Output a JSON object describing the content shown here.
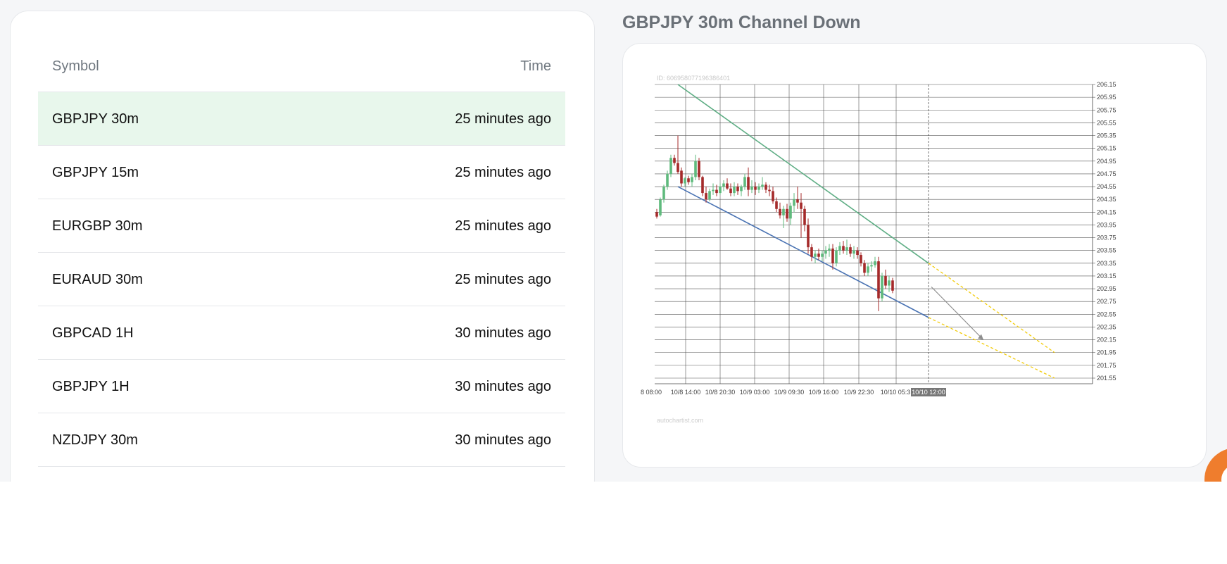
{
  "table": {
    "columns": {
      "symbol": "Symbol",
      "time": "Time"
    },
    "rows": [
      {
        "symbol": "GBPJPY 30m",
        "time": "25 minutes ago",
        "selected": true
      },
      {
        "symbol": "GBPJPY 15m",
        "time": "25 minutes ago"
      },
      {
        "symbol": "EURGBP 30m",
        "time": "25 minutes ago"
      },
      {
        "symbol": "EURAUD 30m",
        "time": "25 minutes ago"
      },
      {
        "symbol": "GBPCAD 1H",
        "time": "30 minutes ago"
      },
      {
        "symbol": "GBPJPY 1H",
        "time": "30 minutes ago"
      },
      {
        "symbol": "NZDJPY 30m",
        "time": "30 minutes ago"
      }
    ]
  },
  "detail": {
    "title": "GBPJPY 30m Channel Down",
    "chart_id": "ID: 6069580771963864​01",
    "watermark": "autochartist.com",
    "selected_time_label": "10/10 12:00"
  },
  "colors": {
    "bull": "#5fba7d",
    "bear": "#a52a2a",
    "resistance": "#5fae85",
    "support": "#4a73b3",
    "projection": "#f2cc0c",
    "forecast_arrow": "#8e8e8e",
    "highlight_row": "#e8f7ec",
    "fab": "#ef7d2d"
  },
  "chart_data": {
    "type": "candlestick",
    "title": "GBPJPY 30m Channel Down",
    "y_ticks": [
      "206.15",
      "205.95",
      "205.75",
      "205.55",
      "205.35",
      "205.15",
      "204.95",
      "204.75",
      "204.55",
      "204.35",
      "204.15",
      "203.95",
      "203.75",
      "203.55",
      "203.35",
      "203.15",
      "202.95",
      "202.75",
      "202.55",
      "202.35",
      "202.15",
      "201.95",
      "201.75",
      "201.55"
    ],
    "x_ticks": [
      "8 08:00",
      "10/8 14:00",
      "10/8 20:30",
      "10/9 03:00",
      "10/9 09:30",
      "10/9 16:00",
      "10/9 22:30",
      "10/10 05:3"
    ],
    "x_selected": "10/10 12:00",
    "ylim": [
      201.55,
      206.15
    ],
    "grid": true,
    "candles": [
      [
        0,
        204.15,
        204.2,
        204.05,
        204.08
      ],
      [
        1,
        204.1,
        204.38,
        204.08,
        204.35
      ],
      [
        2,
        204.35,
        204.58,
        204.3,
        204.55
      ],
      [
        3,
        204.55,
        204.8,
        204.5,
        204.75
      ],
      [
        4,
        204.75,
        205.05,
        204.7,
        205.0
      ],
      [
        5,
        205.0,
        205.05,
        204.88,
        204.92
      ],
      [
        6,
        204.92,
        205.35,
        204.75,
        204.78
      ],
      [
        7,
        204.8,
        204.85,
        204.55,
        204.6
      ],
      [
        8,
        204.6,
        204.7,
        204.55,
        204.68
      ],
      [
        9,
        204.68,
        204.72,
        204.58,
        204.62
      ],
      [
        10,
        204.62,
        204.75,
        204.55,
        204.7
      ],
      [
        11,
        204.7,
        205.05,
        204.65,
        204.95
      ],
      [
        12,
        204.95,
        205.0,
        204.65,
        204.7
      ],
      [
        13,
        204.7,
        204.72,
        204.4,
        204.45
      ],
      [
        14,
        204.45,
        204.55,
        204.3,
        204.35
      ],
      [
        15,
        204.35,
        204.52,
        204.32,
        204.48
      ],
      [
        16,
        204.48,
        204.6,
        204.42,
        204.5
      ],
      [
        17,
        204.5,
        204.58,
        204.4,
        204.45
      ],
      [
        18,
        204.45,
        204.6,
        204.42,
        204.55
      ],
      [
        19,
        204.55,
        204.65,
        204.48,
        204.6
      ],
      [
        20,
        204.6,
        204.68,
        204.5,
        204.52
      ],
      [
        21,
        204.52,
        204.6,
        204.4,
        204.45
      ],
      [
        22,
        204.45,
        204.62,
        204.4,
        204.55
      ],
      [
        23,
        204.55,
        204.6,
        204.42,
        204.48
      ],
      [
        24,
        204.48,
        204.58,
        204.4,
        204.55
      ],
      [
        25,
        204.55,
        204.75,
        204.5,
        204.7
      ],
      [
        26,
        204.7,
        204.85,
        204.4,
        204.5
      ],
      [
        27,
        204.5,
        204.65,
        204.45,
        204.55
      ],
      [
        28,
        204.55,
        204.62,
        204.42,
        204.5
      ],
      [
        29,
        204.5,
        204.6,
        204.45,
        204.55
      ],
      [
        30,
        204.55,
        204.7,
        204.5,
        204.58
      ],
      [
        31,
        204.58,
        204.62,
        204.45,
        204.5
      ],
      [
        32,
        204.5,
        204.58,
        204.4,
        204.48
      ],
      [
        33,
        204.48,
        204.55,
        204.28,
        204.32
      ],
      [
        34,
        204.32,
        204.38,
        204.15,
        204.2
      ],
      [
        35,
        204.2,
        204.3,
        204.05,
        204.1
      ],
      [
        36,
        204.1,
        204.25,
        203.9,
        204.2
      ],
      [
        37,
        204.2,
        204.28,
        204.0,
        204.05
      ],
      [
        38,
        204.05,
        204.3,
        203.95,
        204.25
      ],
      [
        39,
        204.25,
        204.45,
        204.15,
        204.35
      ],
      [
        40,
        204.35,
        204.55,
        204.2,
        204.3
      ],
      [
        41,
        204.3,
        204.45,
        203.75,
        204.2
      ],
      [
        42,
        204.2,
        204.25,
        203.85,
        203.95
      ],
      [
        43,
        203.95,
        204.05,
        203.5,
        203.6
      ],
      [
        44,
        203.6,
        203.65,
        203.38,
        203.45
      ],
      [
        45,
        203.45,
        203.55,
        203.35,
        203.5
      ],
      [
        46,
        203.5,
        203.58,
        203.4,
        203.45
      ],
      [
        47,
        203.45,
        203.55,
        203.38,
        203.5
      ],
      [
        48,
        203.5,
        203.62,
        203.42,
        203.55
      ],
      [
        49,
        203.55,
        203.65,
        203.45,
        203.58
      ],
      [
        50,
        203.58,
        203.65,
        203.25,
        203.35
      ],
      [
        51,
        203.35,
        203.6,
        203.3,
        203.55
      ],
      [
        52,
        203.55,
        203.68,
        203.48,
        203.62
      ],
      [
        53,
        203.62,
        203.7,
        203.5,
        203.55
      ],
      [
        54,
        203.55,
        203.72,
        203.48,
        203.6
      ],
      [
        55,
        203.6,
        203.65,
        203.45,
        203.5
      ],
      [
        56,
        203.5,
        203.62,
        203.42,
        203.55
      ],
      [
        57,
        203.55,
        203.6,
        203.42,
        203.48
      ],
      [
        58,
        203.48,
        203.52,
        203.3,
        203.35
      ],
      [
        59,
        203.35,
        203.4,
        203.15,
        203.2
      ],
      [
        60,
        203.2,
        203.35,
        203.15,
        203.3
      ],
      [
        61,
        203.3,
        203.38,
        203.22,
        203.32
      ],
      [
        62,
        203.32,
        203.45,
        203.28,
        203.38
      ],
      [
        63,
        203.38,
        203.45,
        202.6,
        202.8
      ],
      [
        64,
        202.8,
        203.2,
        202.75,
        203.15
      ],
      [
        65,
        203.15,
        203.25,
        202.95,
        203.0
      ],
      [
        66,
        203.0,
        203.15,
        202.9,
        203.08
      ],
      [
        67,
        203.08,
        203.12,
        202.88,
        202.92
      ]
    ],
    "resistance_line": {
      "from": [
        "10/8 08:00",
        206.15
      ],
      "to": [
        "10/10 12:00",
        203.35
      ]
    },
    "support_line": {
      "from": [
        "10/8 08:00",
        204.55
      ],
      "to": [
        "10/10 12:00",
        202.5
      ]
    },
    "forecast_target": 202.15
  }
}
